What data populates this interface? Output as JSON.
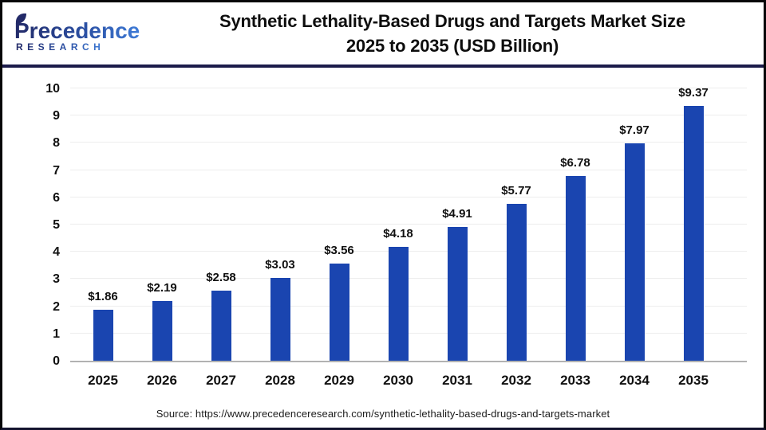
{
  "header": {
    "logo": {
      "line1": "Precedence",
      "line2": "RESEARCH"
    },
    "title_line1": "Synthetic Lethality-Based Drugs and Targets Market Size",
    "title_line2": "2025 to 2035 (USD Billion)"
  },
  "chart_data": {
    "type": "bar",
    "title": "Synthetic Lethality-Based Drugs and Targets Market Size 2025 to 2035 (USD Billion)",
    "categories": [
      "2025",
      "2026",
      "2027",
      "2028",
      "2029",
      "2030",
      "2031",
      "2032",
      "2033",
      "2034",
      "2035"
    ],
    "values": [
      1.86,
      2.19,
      2.58,
      3.03,
      3.56,
      4.18,
      4.91,
      5.77,
      6.78,
      7.97,
      9.37
    ],
    "value_labels": [
      "$1.86",
      "$2.19",
      "$2.58",
      "$3.03",
      "$3.56",
      "$4.18",
      "$4.91",
      "$5.77",
      "$6.78",
      "$7.97",
      "$9.37"
    ],
    "xlabel": "",
    "ylabel": "",
    "ylim": [
      0,
      10
    ],
    "ytick_step": 1,
    "yticks": [
      0,
      1,
      2,
      3,
      4,
      5,
      6,
      7,
      8,
      9,
      10
    ],
    "grid": true,
    "legend": "none",
    "bar_color": "#1a45b0"
  },
  "colors": {
    "brand_gradient_start": "#232a68",
    "brand_gradient_end": "#3e7bd7",
    "separator_navy": "#1b1b4a",
    "gridline": "#ededed",
    "axis_line": "#b2b2b2"
  },
  "footer": {
    "source": "Source: https://www.precedenceresearch.com/synthetic-lethality-based-drugs-and-targets-market"
  }
}
